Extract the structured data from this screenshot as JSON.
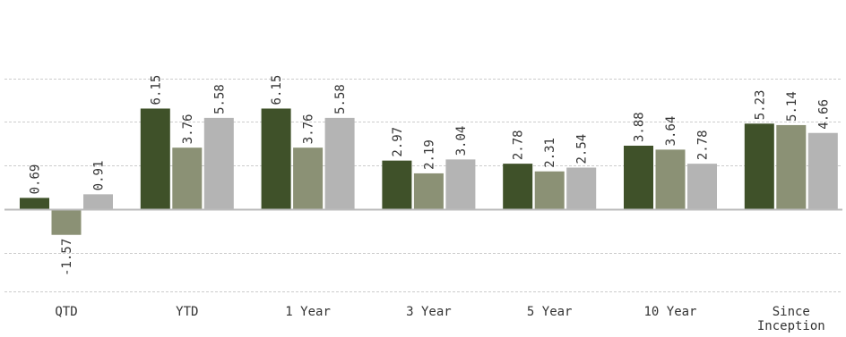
{
  "chart_data": {
    "type": "bar",
    "title": "",
    "xlabel": "",
    "ylabel": "",
    "categories": [
      "QTD",
      "YTD",
      "1 Year",
      "3 Year",
      "5 Year",
      "10 Year",
      "Since Inception"
    ],
    "category_lines": [
      [
        "QTD"
      ],
      [
        "YTD"
      ],
      [
        "1 Year"
      ],
      [
        "3 Year"
      ],
      [
        "5 Year"
      ],
      [
        "10 Year"
      ],
      [
        "Since",
        "Inception"
      ]
    ],
    "series": [
      {
        "values": [
          0.69,
          6.15,
          6.15,
          2.97,
          2.78,
          3.88,
          5.23
        ],
        "color": "#3f5129"
      },
      {
        "values": [
          -1.57,
          3.76,
          3.76,
          2.19,
          2.31,
          3.64,
          5.14
        ],
        "color": "#8b9175"
      },
      {
        "values": [
          0.91,
          5.58,
          5.58,
          3.04,
          2.54,
          2.78,
          4.66
        ],
        "color": "#b4b4b4"
      }
    ],
    "ylim": [
      -5,
      8
    ],
    "grid": true,
    "legend": "none"
  }
}
